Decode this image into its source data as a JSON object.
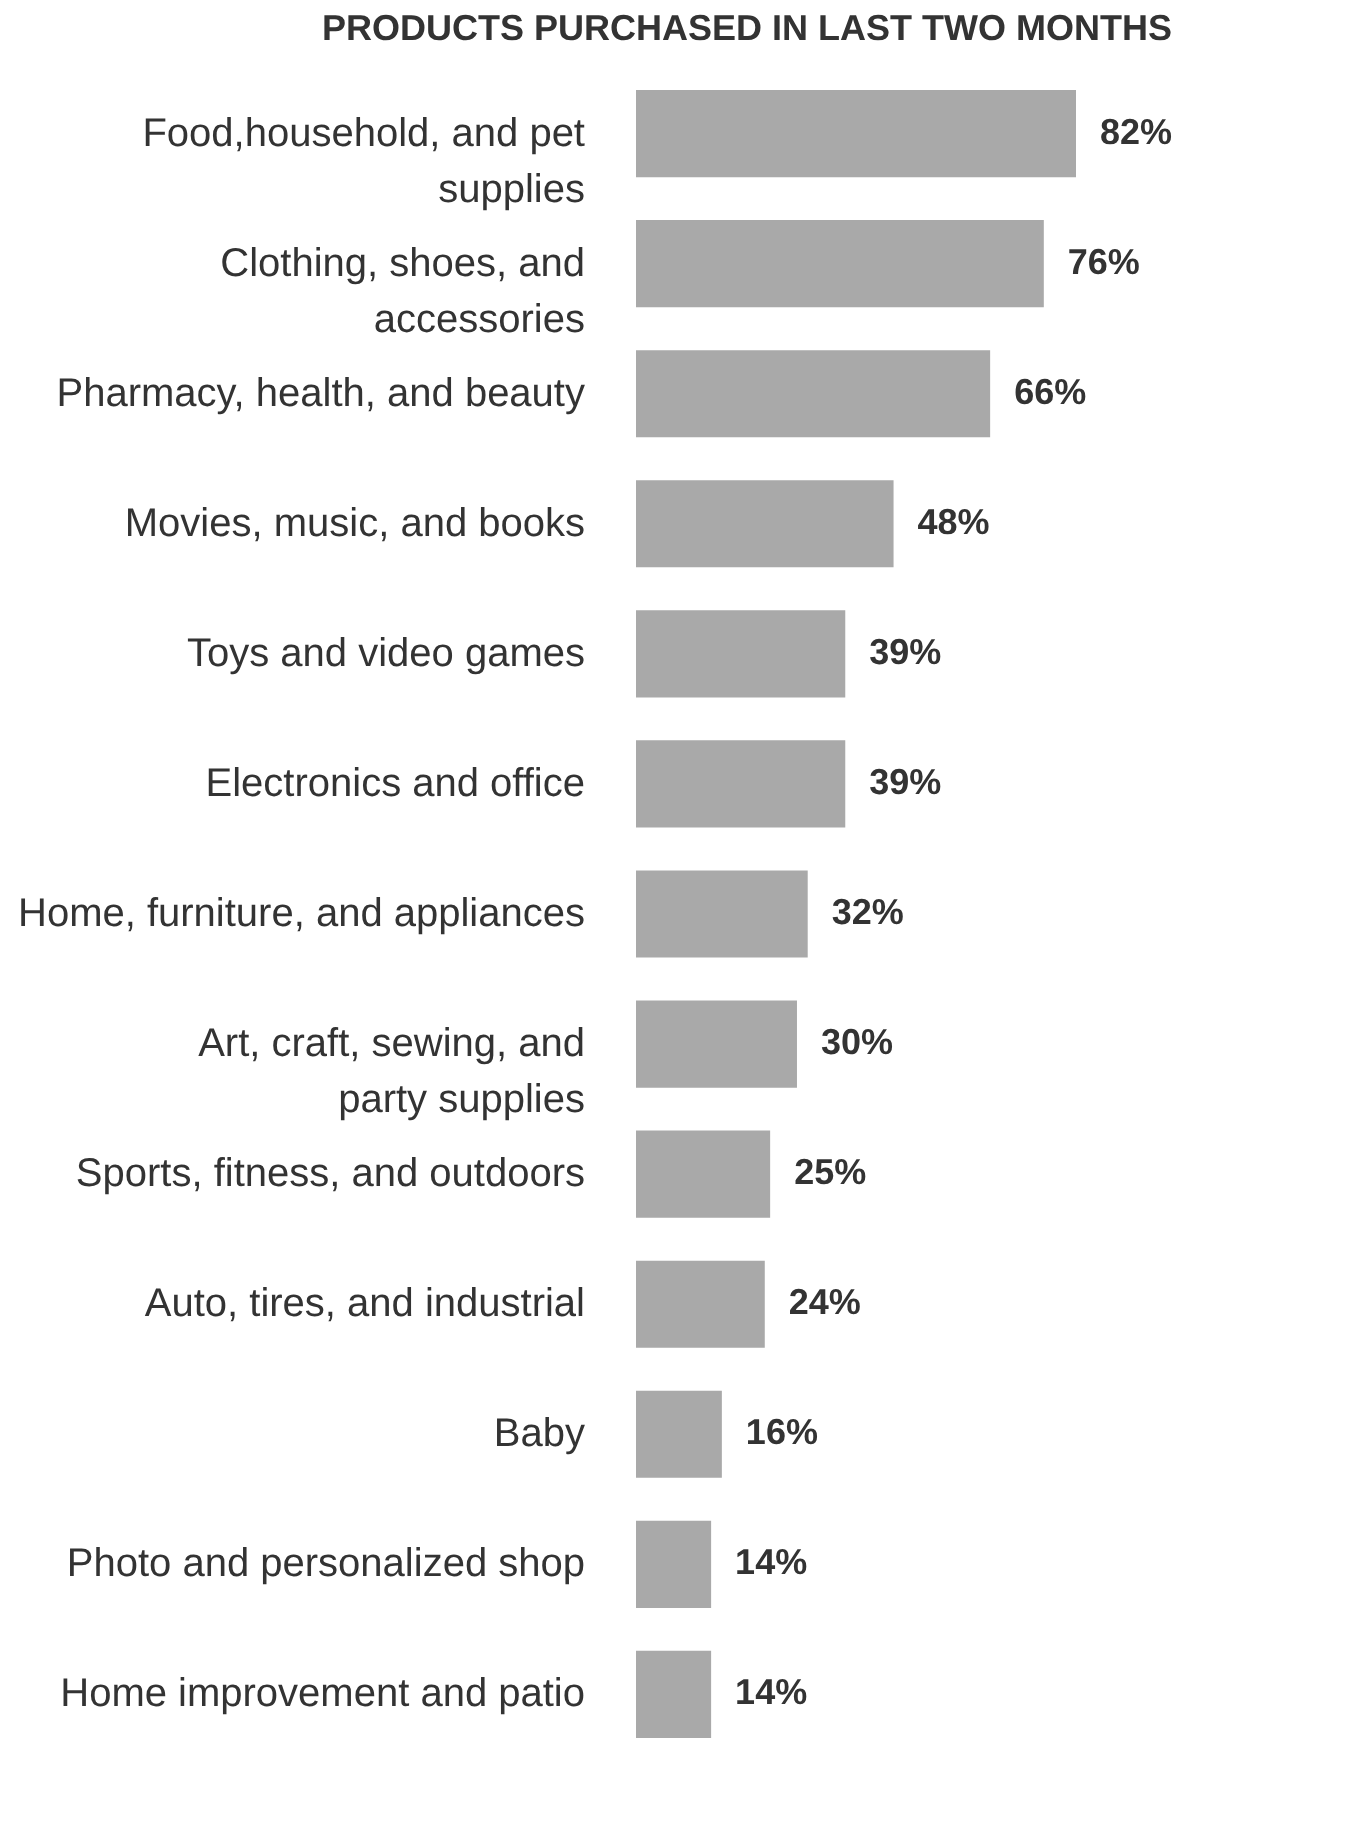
{
  "chart_data": {
    "type": "bar",
    "orientation": "horizontal",
    "title": "PRODUCTS PURCHASED IN LAST TWO MONTHS",
    "categories": [
      "Food,household, and pet supplies",
      "Clothing, shoes, and accessories",
      "Pharmacy, health, and beauty",
      "Movies, music, and books",
      "Toys and video games",
      "Electronics and office",
      "Home, furniture, and appliances",
      "Art, craft, sewing, and party supplies",
      "Sports, fitness, and outdoors",
      "Auto, tires, and industrial",
      "Baby",
      "Photo and personalized shop",
      "Home improvement and patio"
    ],
    "values": [
      82,
      76,
      66,
      48,
      39,
      39,
      32,
      30,
      25,
      24,
      16,
      14,
      14
    ],
    "value_labels": [
      "82%",
      "76%",
      "66%",
      "48%",
      "39%",
      "39%",
      "32%",
      "30%",
      "25%",
      "24%",
      "16%",
      "14%",
      "14%"
    ],
    "color": "#a9a9a9"
  }
}
